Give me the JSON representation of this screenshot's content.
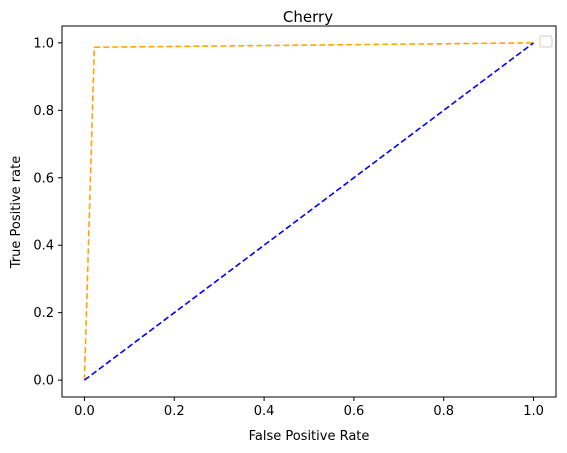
{
  "chart_data": {
    "type": "line",
    "title": "Cherry",
    "xlabel": "False Positive Rate",
    "ylabel": "True Positive rate",
    "xlim": [
      -0.05,
      1.05
    ],
    "ylim": [
      -0.05,
      1.05
    ],
    "x_ticks": [
      0.0,
      0.2,
      0.4,
      0.6,
      0.8,
      1.0
    ],
    "x_tick_labels": [
      "0.0",
      "0.2",
      "0.4",
      "0.6",
      "0.8",
      "1.0"
    ],
    "y_ticks": [
      0.0,
      0.2,
      0.4,
      0.6,
      0.8,
      1.0
    ],
    "y_tick_labels": [
      "0.0",
      "0.2",
      "0.4",
      "0.6",
      "0.8",
      "1.0"
    ],
    "grid": false,
    "legend": {
      "placement": "top-right",
      "entries": []
    },
    "series": [
      {
        "color": "#ffa500",
        "style": "dashed",
        "x": [
          0.0,
          0.022,
          1.0
        ],
        "y": [
          0.0,
          0.987,
          1.0
        ]
      },
      {
        "color": "#0000ff",
        "style": "dashed",
        "x": [
          0.0,
          1.0
        ],
        "y": [
          0.0,
          1.0
        ]
      }
    ]
  }
}
